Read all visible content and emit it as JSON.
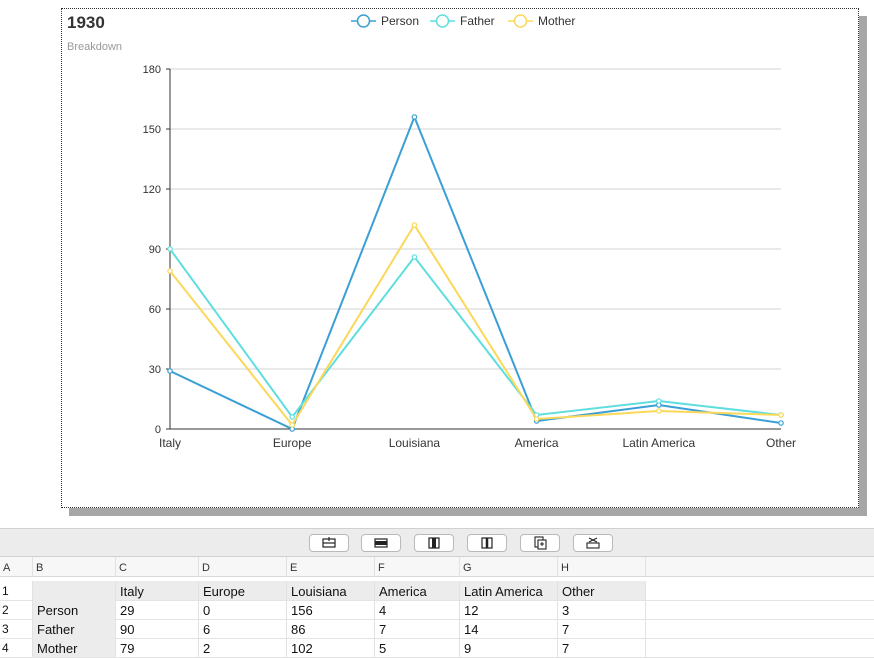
{
  "chart": {
    "title": "1930",
    "subtitle": "Breakdown"
  },
  "chart_data": {
    "type": "line",
    "title": "1930",
    "subtitle": "Breakdown",
    "categories": [
      "Italy",
      "Europe",
      "Louisiana",
      "America",
      "Latin America",
      "Other"
    ],
    "series": [
      {
        "name": "Person",
        "values": [
          29,
          0,
          156,
          4,
          12,
          3
        ],
        "color": "#3a9fd4"
      },
      {
        "name": "Father",
        "values": [
          90,
          6,
          86,
          7,
          14,
          7
        ],
        "color": "#5fdedf"
      },
      {
        "name": "Mother",
        "values": [
          79,
          2,
          102,
          5,
          9,
          7
        ],
        "color": "#fbd85a"
      }
    ],
    "y_ticks": [
      "0",
      "30",
      "60",
      "90",
      "120",
      "150",
      "180"
    ],
    "ylim": [
      0,
      180
    ],
    "grid": true,
    "legend": "top-center"
  },
  "toolbar": {
    "buttons": [
      {
        "icon": "insert-row-above-icon"
      },
      {
        "icon": "insert-row-below-icon"
      },
      {
        "icon": "insert-column-left-icon"
      },
      {
        "icon": "insert-column-right-icon"
      },
      {
        "icon": "copy-to-clipboard-icon"
      },
      {
        "icon": "delete-row-icon"
      }
    ]
  },
  "sheet": {
    "column_letters": [
      "A",
      "B",
      "C",
      "D",
      "E",
      "F",
      "G",
      "H"
    ],
    "rows": [
      {
        "num": "1",
        "cells": [
          "",
          "Italy",
          "Europe",
          "Louisiana",
          "America",
          "Latin America",
          "Other"
        ]
      },
      {
        "num": "2",
        "cells": [
          "Person",
          "29",
          "0",
          "156",
          "4",
          "12",
          "3"
        ]
      },
      {
        "num": "3",
        "cells": [
          "Father",
          "90",
          "6",
          "86",
          "7",
          "14",
          "7"
        ]
      },
      {
        "num": "4",
        "cells": [
          "Mother",
          "79",
          "2",
          "102",
          "5",
          "9",
          "7"
        ]
      }
    ]
  },
  "colors": {
    "grid_line": "#d3d3d3",
    "axis_text": "#333333",
    "toolbar_bg": "#ececec"
  }
}
